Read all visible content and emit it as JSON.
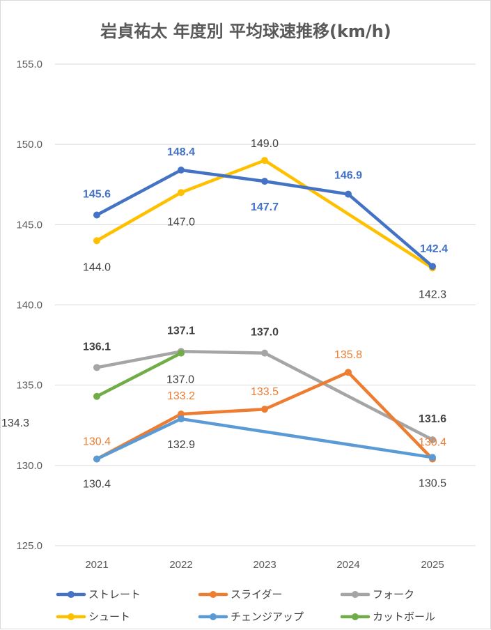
{
  "chart_data": {
    "type": "line",
    "title": "岩貞祐太 年度別 平均球速推移(km/h)",
    "xlabel": "",
    "ylabel": "",
    "categories": [
      "2021",
      "2022",
      "2023",
      "2024",
      "2025"
    ],
    "ylim": [
      125.0,
      155.0
    ],
    "yticks": [
      "125.0",
      "130.0",
      "135.0",
      "140.0",
      "145.0",
      "150.0",
      "155.0"
    ],
    "grid": true,
    "legend_position": "bottom",
    "series": [
      {
        "key": "straight",
        "name": "ストレート",
        "color": "#4472c4",
        "values": [
          145.6,
          148.4,
          147.7,
          146.9,
          142.4
        ],
        "labels": [
          "145.6",
          "148.4",
          "147.7",
          "146.9",
          "142.4"
        ],
        "label_bold": true
      },
      {
        "key": "slider",
        "name": "スライダー",
        "color": "#ed7d31",
        "values": [
          130.4,
          133.2,
          133.5,
          135.8,
          130.4
        ],
        "labels": [
          "130.4",
          "133.2",
          "133.5",
          "135.8",
          "130.4"
        ],
        "label_bold": false
      },
      {
        "key": "fork",
        "name": "フォーク",
        "color": "#a5a5a5",
        "label_color": "#404040",
        "values": [
          136.1,
          137.1,
          137.0,
          null,
          131.6
        ],
        "labels": [
          "136.1",
          "137.1",
          "137.0",
          null,
          "131.6"
        ],
        "label_bold": true
      },
      {
        "key": "shoot",
        "name": "シュート",
        "color": "#ffc000",
        "label_color": "#404040",
        "values": [
          144.0,
          147.0,
          149.0,
          null,
          142.3
        ],
        "labels": [
          "144.0",
          "147.0",
          "149.0",
          null,
          "142.3"
        ],
        "label_bold": false
      },
      {
        "key": "changeup",
        "name": "チェンジアップ",
        "color": "#5b9bd5",
        "label_color": "#404040",
        "values": [
          130.4,
          132.9,
          null,
          null,
          130.5
        ],
        "labels": [
          "130.4",
          "132.9",
          null,
          null,
          "130.5"
        ],
        "label_bold": false
      },
      {
        "key": "cutball",
        "name": "カットボール",
        "color": "#70ad47",
        "label_color": "#404040",
        "values": [
          134.3,
          137.0,
          null,
          null,
          null
        ],
        "labels": [
          "134.3",
          "137.0",
          null,
          null,
          null
        ],
        "label_bold": false
      }
    ]
  }
}
